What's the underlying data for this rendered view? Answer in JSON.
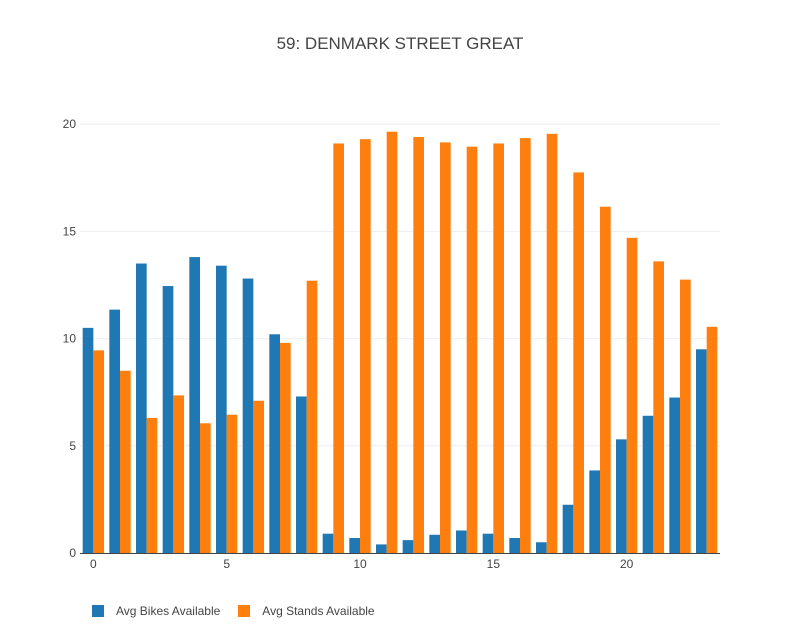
{
  "chart_data": {
    "type": "bar",
    "title": "59: DENMARK STREET GREAT",
    "xlabel": "",
    "ylabel": "",
    "x": [
      0,
      1,
      2,
      3,
      4,
      5,
      6,
      7,
      8,
      9,
      10,
      11,
      12,
      13,
      14,
      15,
      16,
      17,
      18,
      19,
      20,
      21,
      22,
      23
    ],
    "x_ticks": [
      0,
      5,
      10,
      15,
      20
    ],
    "y_ticks": [
      0,
      5,
      10,
      15,
      20
    ],
    "ylim": [
      0,
      21.5
    ],
    "xlim": [
      -0.5,
      23.5
    ],
    "grid": "horizontal",
    "legend_position": "bottom-left",
    "series": [
      {
        "name": "Avg Bikes Available",
        "color": "#1f77b4",
        "values": [
          10.5,
          11.35,
          13.5,
          12.45,
          13.8,
          13.4,
          12.8,
          10.2,
          7.3,
          0.9,
          0.7,
          0.4,
          0.6,
          0.85,
          1.05,
          0.9,
          0.7,
          0.5,
          2.25,
          3.85,
          5.3,
          6.4,
          7.25,
          9.5
        ]
      },
      {
        "name": "Avg Stands Available",
        "color": "#ff7f0e",
        "values": [
          9.45,
          8.5,
          6.3,
          7.35,
          6.05,
          6.45,
          7.1,
          9.8,
          12.7,
          19.1,
          19.3,
          19.65,
          19.4,
          19.15,
          18.95,
          19.1,
          19.35,
          19.55,
          17.75,
          16.15,
          14.7,
          13.6,
          12.75,
          10.55
        ]
      }
    ]
  }
}
